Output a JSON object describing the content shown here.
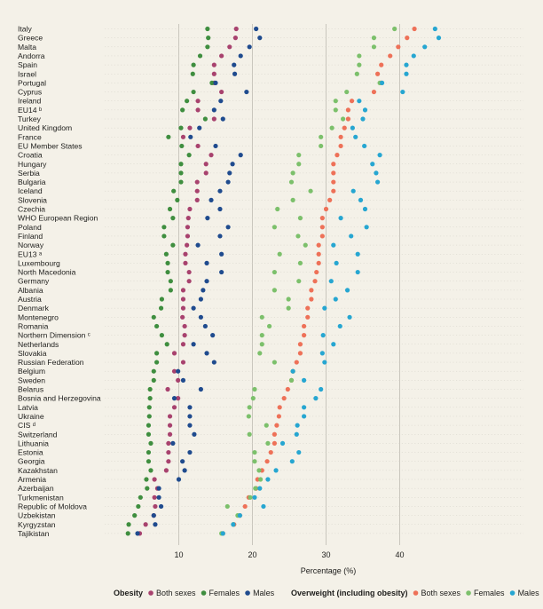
{
  "chart_data": {
    "type": "scatter",
    "title": "",
    "xlabel": "Percentage (%)",
    "ylabel": "",
    "xlim": [
      0,
      45.5
    ],
    "xticks": [
      10,
      20,
      30,
      40
    ],
    "grid": "vertical",
    "legend_position": "bottom",
    "legend_groups": [
      {
        "title": "Obesity",
        "series": [
          "obesity_both",
          "obesity_females",
          "obesity_males"
        ]
      },
      {
        "title": "Overweight (including obesity)",
        "series": [
          "overweight_both",
          "overweight_females",
          "overweight_males"
        ]
      }
    ],
    "series": [
      {
        "key": "obesity_both",
        "name": "Both sexes",
        "color": "#a8426e",
        "values": [
          17.8,
          17.7,
          16.9,
          15.8,
          14.8,
          14.8,
          14.8,
          15.8,
          12.6,
          12.6,
          14.8,
          11.5,
          10.6,
          12.6,
          14.4,
          13.7,
          13.7,
          12.5,
          12.5,
          12.5,
          11.5,
          11.3,
          11.2,
          11.2,
          11.1,
          10.9,
          10.9,
          11.4,
          11.4,
          10.6,
          10.6,
          10.6,
          10.5,
          10.8,
          10.8,
          10.6,
          9.4,
          10.6,
          9.4,
          9.9,
          8.5,
          9.9,
          9.4,
          8.8,
          8.8,
          8.8,
          8.6,
          8.6,
          8.6,
          8.3,
          6.7,
          7.1,
          6.7,
          6.8,
          6.6,
          5.5,
          4.7
        ]
      },
      {
        "key": "obesity_females",
        "name": "Females",
        "color": "#3f8e3f",
        "values": [
          13.9,
          14.0,
          13.9,
          12.9,
          12.0,
          11.9,
          14.5,
          12.0,
          11.1,
          10.5,
          13.6,
          10.3,
          8.6,
          10.4,
          11.4,
          10.3,
          10.3,
          10.3,
          9.3,
          9.8,
          8.8,
          9.2,
          8.0,
          8.0,
          9.2,
          8.3,
          8.5,
          8.5,
          8.9,
          8.9,
          7.7,
          7.6,
          6.6,
          7.0,
          7.7,
          8.4,
          7.0,
          7.0,
          6.6,
          6.6,
          6.1,
          6.1,
          6.0,
          6.0,
          5.9,
          5.9,
          6.2,
          5.9,
          5.9,
          6.2,
          5.6,
          5.7,
          4.8,
          4.5,
          4.0,
          3.2,
          3.1
        ]
      },
      {
        "key": "obesity_males",
        "name": "Males",
        "color": "#1f4b8e",
        "values": [
          20.5,
          21.0,
          19.6,
          18.4,
          17.5,
          17.6,
          15.0,
          19.2,
          15.7,
          14.8,
          16.0,
          12.8,
          11.6,
          15.0,
          18.4,
          17.3,
          16.9,
          16.7,
          15.6,
          14.4,
          15.6,
          13.9,
          16.7,
          15.6,
          12.6,
          15.8,
          13.8,
          15.8,
          13.8,
          13.3,
          13.0,
          12.0,
          13.0,
          13.6,
          14.6,
          12.0,
          13.8,
          14.8,
          9.9,
          10.6,
          13.0,
          9.4,
          11.5,
          11.5,
          11.5,
          12.1,
          9.2,
          11.5,
          10.5,
          10.8,
          10.0,
          7.3,
          7.3,
          7.6,
          6.6,
          6.8,
          4.4
        ]
      },
      {
        "key": "overweight_both",
        "name": "Both sexes",
        "color": "#ee7158",
        "values": [
          42.0,
          41.0,
          39.8,
          38.7,
          37.5,
          37.0,
          37.5,
          36.5,
          33.5,
          33.0,
          33.0,
          32.5,
          32.0,
          32.0,
          31.5,
          31.0,
          31.0,
          31.0,
          31.0,
          30.5,
          30.0,
          29.5,
          29.5,
          29.5,
          29.0,
          29.0,
          29.0,
          28.7,
          28.5,
          28.0,
          28.0,
          27.5,
          27.5,
          27.0,
          27.0,
          26.5,
          26.5,
          26.0,
          25.5,
          25.3,
          24.8,
          24.3,
          23.7,
          23.6,
          23.3,
          23.0,
          23.0,
          22.5,
          22.0,
          21.3,
          20.7,
          20.5,
          19.5,
          19.0,
          18.3,
          17.5,
          16.0
        ]
      },
      {
        "key": "overweight_females",
        "name": "Females",
        "color": "#7cc06b",
        "values": [
          39.3,
          36.5,
          36.5,
          34.5,
          34.5,
          34.2,
          37.3,
          32.8,
          31.3,
          31.3,
          32.3,
          30.8,
          29.3,
          29.3,
          26.3,
          26.3,
          25.5,
          25.3,
          27.9,
          25.5,
          23.4,
          26.5,
          23.0,
          26.2,
          27.2,
          23.7,
          26.5,
          23.0,
          26.3,
          23.0,
          24.9,
          24.9,
          21.3,
          22.3,
          21.3,
          21.3,
          21.0,
          23.0,
          25.5,
          25.3,
          20.3,
          20.1,
          19.6,
          19.5,
          21.9,
          19.6,
          22.1,
          20.3,
          20.3,
          20.9,
          21.1,
          20.4,
          19.7,
          16.6,
          18.0,
          17.4,
          15.8
        ]
      },
      {
        "key": "overweight_males",
        "name": "Males",
        "color": "#26a6d1",
        "values": [
          44.8,
          45.3,
          43.4,
          41.9,
          40.9,
          40.9,
          37.6,
          40.4,
          34.5,
          35.3,
          35.0,
          33.6,
          34.0,
          35.2,
          37.3,
          36.3,
          36.8,
          37.0,
          33.7,
          34.7,
          35.3,
          32.0,
          35.5,
          33.4,
          31.0,
          34.3,
          31.4,
          34.3,
          30.7,
          32.9,
          31.3,
          29.8,
          33.2,
          31.9,
          29.6,
          31.0,
          29.5,
          29.8,
          25.5,
          27.0,
          29.3,
          28.6,
          27.0,
          27.0,
          26.1,
          26.0,
          24.1,
          26.3,
          25.4,
          23.2,
          22.1,
          21.0,
          20.3,
          21.5,
          18.3,
          17.4,
          16.0
        ]
      }
    ],
    "categories": [
      "Italy",
      "Greece",
      "Malta",
      "Andorra",
      "Spain",
      "Israel",
      "Portugal",
      "Cyprus",
      "Ireland",
      "EU14 ᵇ",
      "Turkey",
      "United Kingdom",
      "France",
      "EU Member States",
      "Croatia",
      "Hungary",
      "Serbia",
      "Bulgaria",
      "Iceland",
      "Slovenia",
      "Czechia",
      "WHO European Region",
      "Poland",
      "Finland",
      "Norway",
      "EU13 ᵃ",
      "Luxembourg",
      "North Macedonia",
      "Germany",
      "Albania",
      "Austria",
      "Denmark",
      "Montenegro",
      "Romania",
      "Northern Dimension ᶜ",
      "Netherlands",
      "Slovakia",
      "Russian Federation",
      "Belgium",
      "Sweden",
      "Belarus",
      "Bosnia and Herzegovina",
      "Latvia",
      "Ukraine",
      "CIS ᵈ",
      "Switzerland",
      "Lithuania",
      "Estonia",
      "Georgia",
      "Kazakhstan",
      "Armenia",
      "Azerbaijan",
      "Turkmenistan",
      "Republic of Moldova",
      "Uzbekistan",
      "Kyrgyzstan",
      "Tajikistan"
    ]
  }
}
